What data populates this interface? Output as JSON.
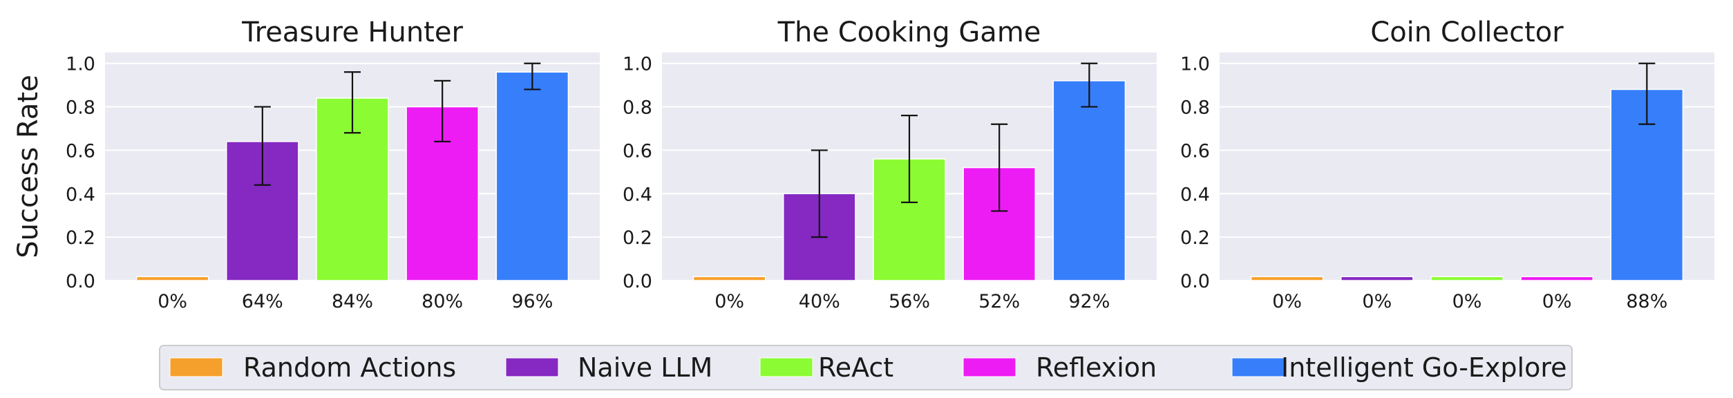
{
  "chart_data": {
    "type": "bar",
    "ylabel": "Success Rate",
    "ylim": [
      0,
      1.05
    ],
    "yticks": [
      0.0,
      0.2,
      0.4,
      0.6,
      0.8,
      1.0
    ],
    "grid": true,
    "legend_position": "bottom-center",
    "series": [
      {
        "name": "Random Actions",
        "color": "#f5a02c"
      },
      {
        "name": "Naive LLM",
        "color": "#8529c2"
      },
      {
        "name": "ReAct",
        "color": "#8bfb33"
      },
      {
        "name": "Reflexion",
        "color": "#ee1cf4"
      },
      {
        "name": "Intelligent Go-Explore",
        "color": "#377ffa"
      }
    ],
    "panels": [
      {
        "title": "Treasure Hunter",
        "categories": [
          "0%",
          "64%",
          "84%",
          "80%",
          "96%"
        ],
        "values": [
          0.0,
          0.64,
          0.84,
          0.8,
          0.96
        ],
        "error_low": [
          null,
          0.44,
          0.68,
          0.64,
          0.88
        ],
        "error_high": [
          null,
          0.8,
          0.96,
          0.92,
          1.0
        ]
      },
      {
        "title": "The Cooking Game",
        "categories": [
          "0%",
          "40%",
          "56%",
          "52%",
          "92%"
        ],
        "values": [
          0.0,
          0.4,
          0.56,
          0.52,
          0.92
        ],
        "error_low": [
          null,
          0.2,
          0.36,
          0.32,
          0.8
        ],
        "error_high": [
          null,
          0.6,
          0.76,
          0.72,
          1.0
        ]
      },
      {
        "title": "Coin Collector",
        "categories": [
          "0%",
          "0%",
          "0%",
          "0%",
          "88%"
        ],
        "values": [
          0.0,
          0.0,
          0.0,
          0.0,
          0.88
        ],
        "error_low": [
          null,
          null,
          null,
          null,
          0.72
        ],
        "error_high": [
          null,
          null,
          null,
          null,
          1.0
        ]
      }
    ]
  }
}
